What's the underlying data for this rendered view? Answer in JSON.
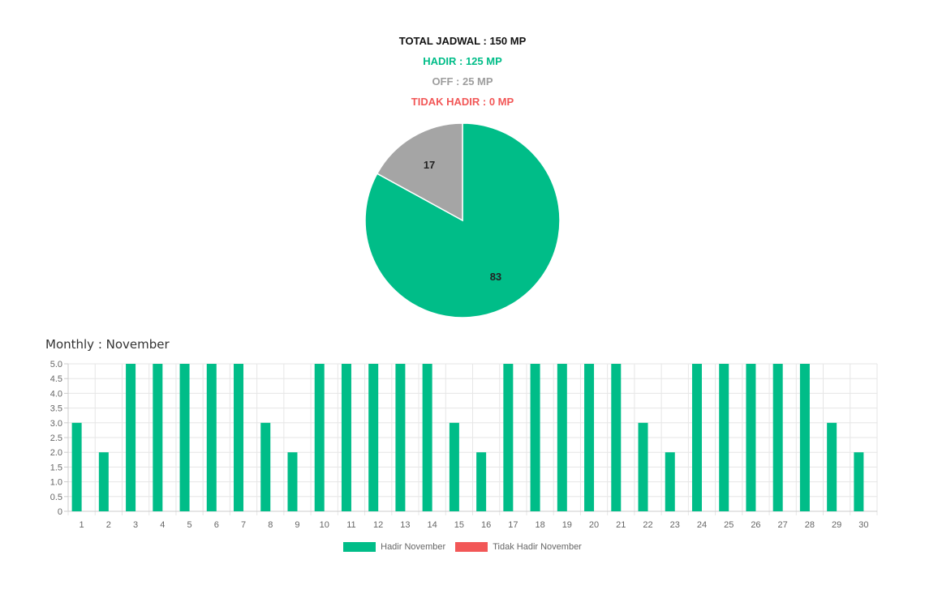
{
  "summary": {
    "total": "TOTAL JADWAL : 150 MP",
    "hadir": "HADIR : 125 MP",
    "off": "OFF : 25 MP",
    "tidak_hadir": "TIDAK HADIR : 0 MP"
  },
  "colors": {
    "hadir": "#00bd88",
    "off": "#a5a5a5",
    "tidak_hadir": "#f25757",
    "grid": "#e6e6e6",
    "tick_text": "#666666"
  },
  "monthly_title": "Monthly : November",
  "chart_data": [
    {
      "type": "pie",
      "title": "",
      "slices": [
        {
          "label": "HADIR",
          "value": 83,
          "color": "#00bd88"
        },
        {
          "label": "OFF",
          "value": 17,
          "color": "#a5a5a5"
        }
      ]
    },
    {
      "type": "bar",
      "title": "Monthly : November",
      "xlabel": "",
      "ylabel": "",
      "ylim": [
        0,
        5
      ],
      "yticks": [
        "0",
        "0.5",
        "1.0",
        "1.5",
        "2.0",
        "2.5",
        "3.0",
        "3.5",
        "4.0",
        "4.5",
        "5.0"
      ],
      "grid": true,
      "legend_position": "bottom",
      "categories": [
        "1",
        "2",
        "3",
        "4",
        "5",
        "6",
        "7",
        "8",
        "9",
        "10",
        "11",
        "12",
        "13",
        "14",
        "15",
        "16",
        "17",
        "18",
        "19",
        "20",
        "21",
        "22",
        "23",
        "24",
        "25",
        "26",
        "27",
        "28",
        "29",
        "30"
      ],
      "series": [
        {
          "name": "Hadir November",
          "color": "#00bd88",
          "values": [
            3,
            2,
            5,
            5,
            5,
            5,
            5,
            3,
            2,
            5,
            5,
            5,
            5,
            5,
            3,
            2,
            5,
            5,
            5,
            5,
            5,
            3,
            2,
            5,
            5,
            5,
            5,
            5,
            3,
            2
          ]
        },
        {
          "name": "Tidak Hadir November",
          "color": "#f25757",
          "values": [
            0,
            0,
            0,
            0,
            0,
            0,
            0,
            0,
            0,
            0,
            0,
            0,
            0,
            0,
            0,
            0,
            0,
            0,
            0,
            0,
            0,
            0,
            0,
            0,
            0,
            0,
            0,
            0,
            0,
            0
          ]
        }
      ]
    }
  ]
}
